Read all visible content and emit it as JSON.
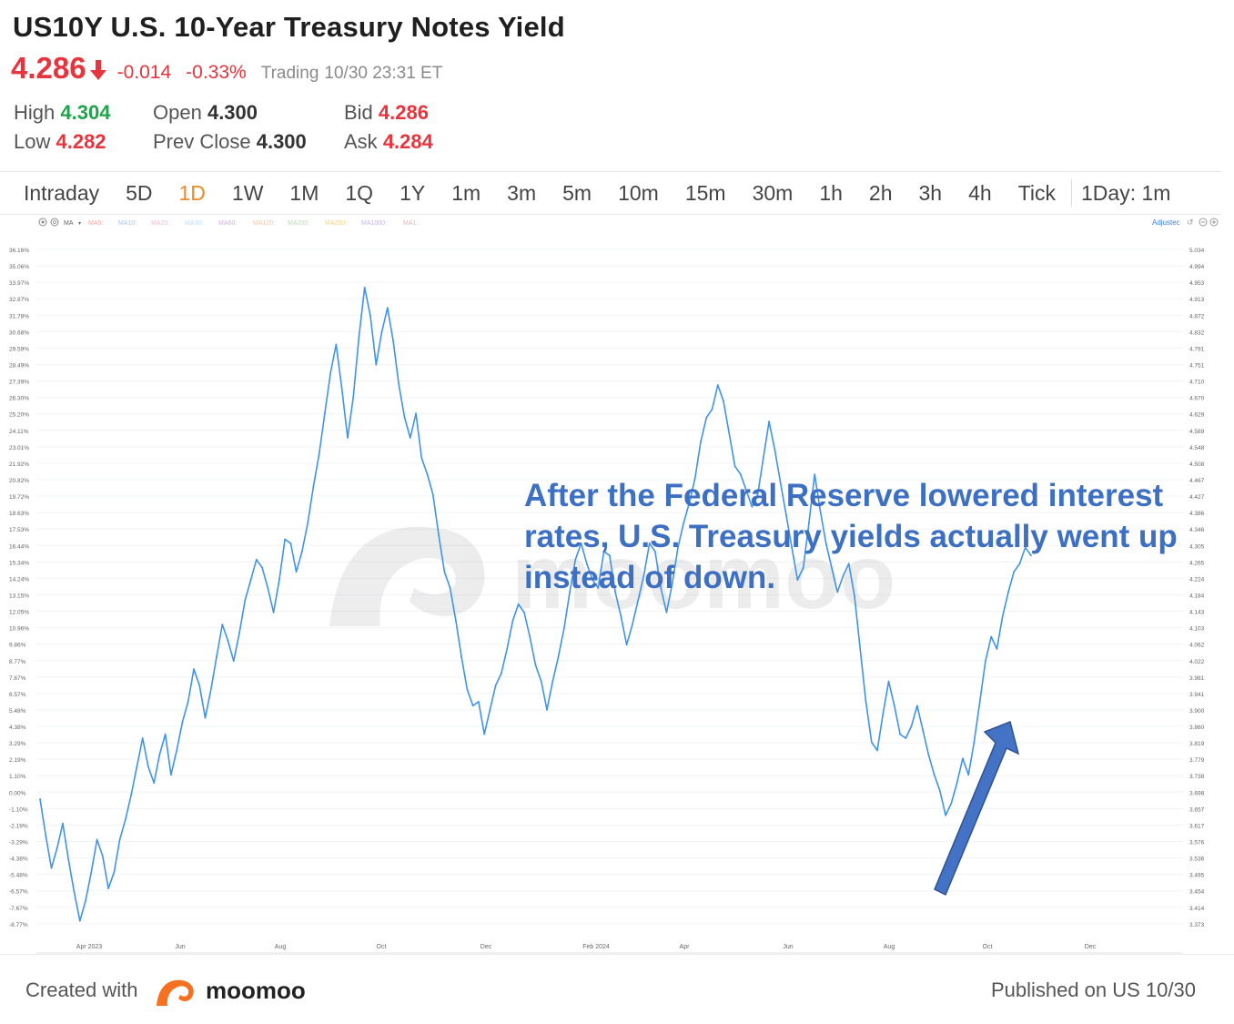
{
  "header": {
    "title": "US10Y U.S. 10-Year Treasury Notes Yield",
    "price": "4.286",
    "change": "-0.014",
    "change_pct": "-0.33%",
    "trading_status": "Trading",
    "trading_time": "10/30 23:31 ET",
    "stats": {
      "high_label": "High",
      "high_value": "4.304",
      "low_label": "Low",
      "low_value": "4.282",
      "open_label": "Open",
      "open_value": "4.300",
      "prev_close_label": "Prev Close",
      "prev_close_value": "4.300",
      "bid_label": "Bid",
      "bid_value": "4.286",
      "ask_label": "Ask",
      "ask_value": "4.284"
    }
  },
  "tabs": [
    "Intraday",
    "5D",
    "1D",
    "1W",
    "1M",
    "1Q",
    "1Y",
    "1m",
    "3m",
    "5m",
    "10m",
    "15m",
    "30m",
    "1h",
    "2h",
    "3h",
    "4h",
    "Tick"
  ],
  "active_tab": "1D",
  "period_selector": "1Day: 1m",
  "indicator_bar": {
    "ma_label": "MA",
    "items": [
      "MA5:",
      "MA10:",
      "MA20:",
      "MA30:",
      "MA60:",
      "MA120:",
      "MA200:",
      "MA250:",
      "MA1000:",
      "MA1:"
    ],
    "adjusted_label": "Adjustec"
  },
  "annotation": "After the Federal Reserve lowered interest rates, U.S. Treasury yields actually went up instead of down.",
  "watermark": "moomoo",
  "footer": {
    "created_with": "Created with",
    "brand": "moomoo",
    "published": "Published on US 10/30"
  },
  "colors": {
    "up": "#1ea44b",
    "down": "#e8343c",
    "active_tab": "#f08a24",
    "line": "#3f93e8",
    "annotation": "#3d6fc2",
    "arrow_fill": "#4472c4"
  },
  "chart_data": {
    "type": "line",
    "title": "",
    "x_tick_labels": [
      "Apr 2023",
      "Jun",
      "Aug",
      "Oct",
      "Dec",
      "Feb 2024",
      "Apr",
      "Jun",
      "Aug",
      "Oct",
      "Dec"
    ],
    "y_left_ticks": [
      "36.16%",
      "35.06%",
      "33.97%",
      "32.87%",
      "31.78%",
      "30.68%",
      "29.59%",
      "28.49%",
      "27.39%",
      "26.30%",
      "25.20%",
      "24.11%",
      "23.01%",
      "21.92%",
      "20.82%",
      "19.72%",
      "18.63%",
      "17.53%",
      "16.44%",
      "15.34%",
      "14.24%",
      "13.15%",
      "12.05%",
      "10.96%",
      "9.86%",
      "8.77%",
      "7.67%",
      "6.57%",
      "5.48%",
      "4.38%",
      "3.29%",
      "2.19%",
      "1.10%",
      "0.00%",
      "-1.10%",
      "-2.19%",
      "-3.29%",
      "-4.38%",
      "-5.48%",
      "-6.57%",
      "-7.67%",
      "-8.77%"
    ],
    "y_right_ticks": [
      "5.034",
      "4.994",
      "4.953",
      "4.913",
      "4.872",
      "4.832",
      "4.791",
      "4.751",
      "4.710",
      "4.670",
      "4.629",
      "4.589",
      "4.548",
      "4.508",
      "4.467",
      "4.427",
      "4.386",
      "4.346",
      "4.305",
      "4.265",
      "4.224",
      "4.184",
      "4.143",
      "4.103",
      "4.062",
      "4.022",
      "3.981",
      "3.941",
      "3.900",
      "3.860",
      "3.819",
      "3.779",
      "3.738",
      "3.698",
      "3.657",
      "3.617",
      "3.576",
      "3.536",
      "3.495",
      "3.454",
      "3.414",
      "3.373"
    ],
    "ylim": [
      3.373,
      5.034
    ],
    "series": [
      {
        "values": [
          3.68,
          3.59,
          3.51,
          3.56,
          3.62,
          3.53,
          3.45,
          3.38,
          3.43,
          3.5,
          3.58,
          3.54,
          3.46,
          3.5,
          3.58,
          3.63,
          3.69,
          3.76,
          3.83,
          3.76,
          3.72,
          3.79,
          3.84,
          3.74,
          3.8,
          3.87,
          3.92,
          4.0,
          3.96,
          3.88,
          3.95,
          4.03,
          4.11,
          4.07,
          4.02,
          4.09,
          4.17,
          4.22,
          4.27,
          4.25,
          4.2,
          4.14,
          4.22,
          4.32,
          4.31,
          4.24,
          4.29,
          4.36,
          4.45,
          4.53,
          4.63,
          4.73,
          4.8,
          4.69,
          4.57,
          4.67,
          4.82,
          4.94,
          4.87,
          4.75,
          4.83,
          4.89,
          4.81,
          4.7,
          4.62,
          4.57,
          4.63,
          4.52,
          4.48,
          4.43,
          4.33,
          4.24,
          4.2,
          4.12,
          4.03,
          3.95,
          3.91,
          3.92,
          3.84,
          3.9,
          3.96,
          3.99,
          4.05,
          4.12,
          4.16,
          4.14,
          4.08,
          4.01,
          3.97,
          3.9,
          3.97,
          4.03,
          4.1,
          4.19,
          4.27,
          4.31,
          4.26,
          4.22,
          4.2,
          4.29,
          4.28,
          4.19,
          4.13,
          4.06,
          4.11,
          4.17,
          4.23,
          4.31,
          4.29,
          4.2,
          4.14,
          4.21,
          4.3,
          4.36,
          4.41,
          4.47,
          4.56,
          4.62,
          4.64,
          4.7,
          4.66,
          4.58,
          4.5,
          4.48,
          4.44,
          4.4,
          4.43,
          4.52,
          4.61,
          4.54,
          4.46,
          4.38,
          4.3,
          4.22,
          4.25,
          4.36,
          4.48,
          4.39,
          4.31,
          4.25,
          4.19,
          4.23,
          4.26,
          4.18,
          4.05,
          3.92,
          3.82,
          3.8,
          3.89,
          3.97,
          3.91,
          3.84,
          3.83,
          3.86,
          3.91,
          3.85,
          3.79,
          3.74,
          3.7,
          3.64,
          3.67,
          3.72,
          3.78,
          3.74,
          3.82,
          3.92,
          4.02,
          4.08,
          4.05,
          4.13,
          4.19,
          4.24,
          4.26,
          4.3,
          4.28
        ]
      }
    ],
    "grid": true,
    "legend": "none"
  }
}
